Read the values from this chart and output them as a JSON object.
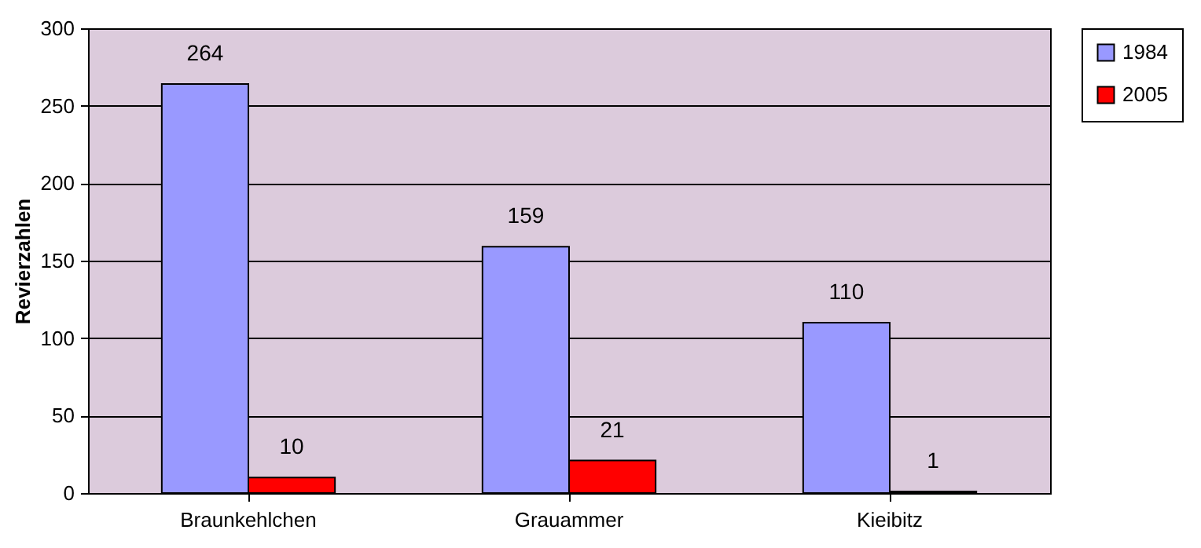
{
  "chart_data": {
    "type": "bar",
    "ylabel": "Revierzahlen",
    "categories": [
      "Braunkehlchen",
      "Grauammer",
      "Kieibitz"
    ],
    "series": [
      {
        "name": "1984",
        "color": "#9999ff",
        "values": [
          264,
          159,
          110
        ]
      },
      {
        "name": "2005",
        "color": "#ff0000",
        "values": [
          10,
          21,
          1
        ]
      }
    ],
    "ylim": [
      0,
      300
    ],
    "yticks": [
      0,
      50,
      100,
      150,
      200,
      250,
      300
    ],
    "grid": "y",
    "legend": "right",
    "data_labels": true
  }
}
